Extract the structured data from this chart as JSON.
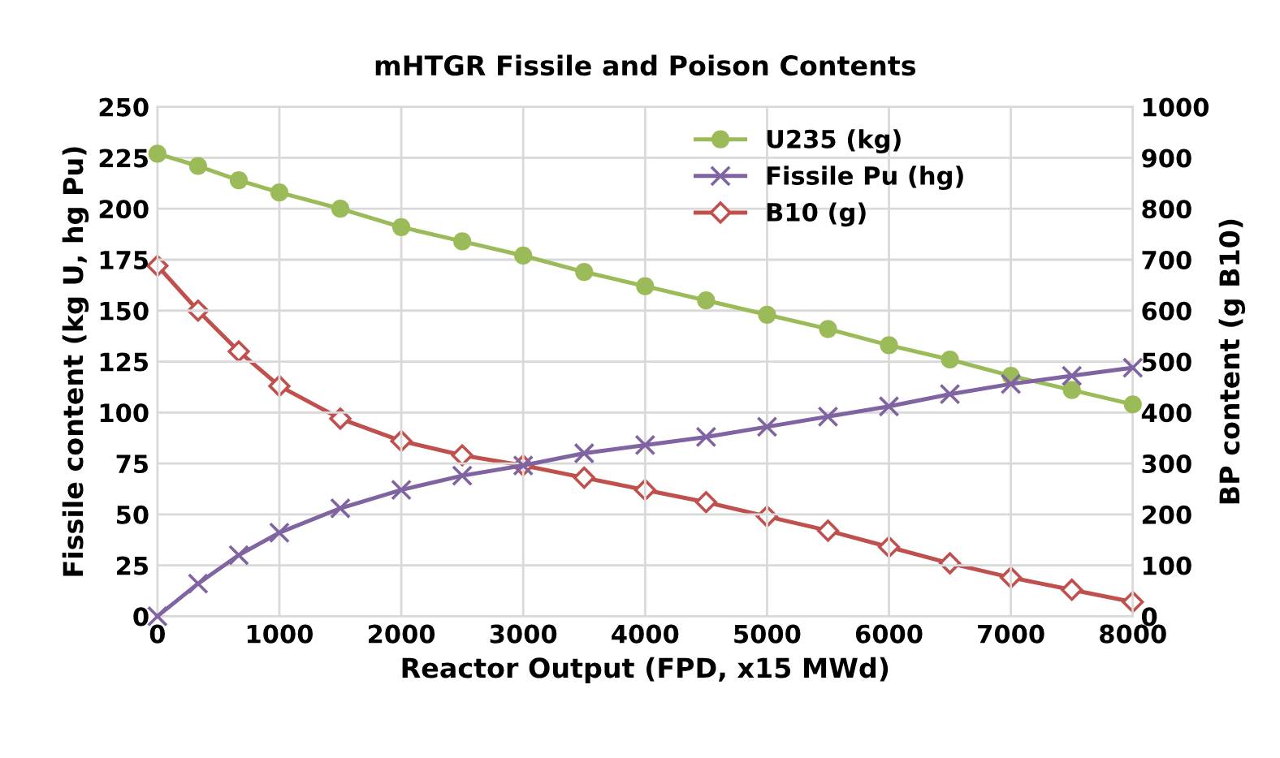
{
  "chart_data": {
    "type": "line",
    "title": "mHTGR Fissile and Poison Contents",
    "xlabel": "Reactor Output (FPD, x15 MWd)",
    "ylabel": "Fissile content (kg U, hg Pu)",
    "y2label": "BP content (g B10)",
    "x": [
      0,
      333,
      667,
      1000,
      1500,
      2000,
      2500,
      3000,
      3500,
      4000,
      4500,
      5000,
      5500,
      6000,
      6500,
      7000,
      7500,
      8000
    ],
    "series": [
      {
        "name": "U235 (kg)",
        "color": "#9bbb59",
        "marker": "circle",
        "values": [
          227,
          221,
          214,
          208,
          200,
          191,
          184,
          177,
          169,
          162,
          155,
          148,
          141,
          133,
          126,
          118,
          111,
          104
        ]
      },
      {
        "name": "Fissile Pu (hg)",
        "color": "#8064a2",
        "marker": "cross",
        "values": [
          0,
          16,
          30,
          41,
          53,
          62,
          69,
          74,
          80,
          84,
          88,
          93,
          98,
          103,
          109,
          114,
          118,
          122
        ]
      },
      {
        "name": "B10 (g)",
        "color": "#c0504d",
        "marker": "diamond",
        "axis": "y2",
        "values": [
          688,
          600,
          520,
          452,
          388,
          344,
          316,
          296,
          272,
          248,
          224,
          196,
          168,
          136,
          104,
          76,
          52,
          28
        ]
      }
    ],
    "xlim": [
      0,
      8000
    ],
    "xticks": [
      0,
      1000,
      2000,
      3000,
      4000,
      5000,
      6000,
      7000,
      8000
    ],
    "ylim": [
      0,
      250
    ],
    "yticks": [
      0,
      25,
      50,
      75,
      100,
      125,
      150,
      175,
      200,
      225,
      250
    ],
    "y2lim": [
      0,
      1000
    ],
    "y2ticks": [
      0,
      100,
      200,
      300,
      400,
      500,
      600,
      700,
      800,
      900,
      1000
    ],
    "grid": true,
    "legend": "top right",
    "line_style": "solid"
  }
}
